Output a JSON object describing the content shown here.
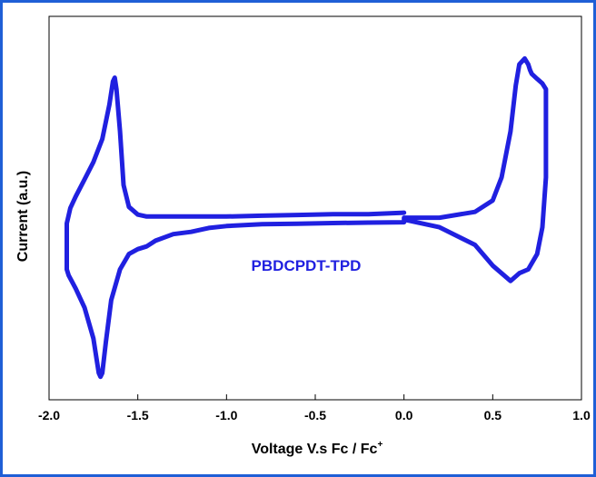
{
  "colors": {
    "frame": "#1f5fd6",
    "series": "#2020e0",
    "axis": "#000000",
    "annotation": "#2020e0"
  },
  "chart_data": {
    "type": "line",
    "title": "",
    "xlabel": "Voltage V.s Fc / Fc",
    "xlabel_superscript": "+",
    "ylabel": "Current (a.u.)",
    "annotation": "PBDCPDT-TPD",
    "xlim": [
      -2.0,
      1.0
    ],
    "ylim": [
      0,
      1
    ],
    "y_ticks_labeled": false,
    "grid": false,
    "legend": "none",
    "x_ticks": [
      -2.0,
      -1.5,
      -1.0,
      -0.5,
      0.0,
      0.5,
      1.0
    ],
    "x_tick_labels": [
      "-2.0",
      "-1.5",
      "-1.0",
      "-0.5",
      "0.0",
      "0.5",
      "1.0"
    ],
    "series": [
      {
        "name": "",
        "x": [
          0.0,
          -0.2,
          -0.4,
          -0.6,
          -0.8,
          -1.0,
          -1.2,
          -1.3,
          -1.4,
          -1.45,
          -1.5,
          -1.55,
          -1.58,
          -1.6,
          -1.62,
          -1.63,
          -1.64,
          -1.66,
          -1.7,
          -1.75,
          -1.8,
          -1.85,
          -1.88,
          -1.9,
          -1.9,
          -1.89,
          -1.85,
          -1.8,
          -1.75,
          -1.73,
          -1.72,
          -1.71,
          -1.7,
          -1.68,
          -1.65,
          -1.6,
          -1.55,
          -1.5,
          -1.45,
          -1.4,
          -1.3,
          -1.2,
          -1.1,
          -1.0,
          -0.8,
          -0.6,
          -0.4,
          -0.2,
          0.0,
          0.0,
          0.2,
          0.4,
          0.5,
          0.55,
          0.6,
          0.63,
          0.65,
          0.68,
          0.7,
          0.71,
          0.72,
          0.75,
          0.78,
          0.8,
          0.8,
          0.78,
          0.75,
          0.7,
          0.65,
          0.6,
          0.5,
          0.4,
          0.2,
          0.0
        ],
        "y": [
          0.488,
          0.484,
          0.484,
          0.482,
          0.48,
          0.478,
          0.478,
          0.478,
          0.478,
          0.478,
          0.483,
          0.503,
          0.56,
          0.7,
          0.81,
          0.84,
          0.83,
          0.77,
          0.68,
          0.62,
          0.575,
          0.53,
          0.5,
          0.46,
          0.34,
          0.325,
          0.29,
          0.24,
          0.16,
          0.1,
          0.07,
          0.06,
          0.07,
          0.15,
          0.26,
          0.34,
          0.38,
          0.393,
          0.4,
          0.415,
          0.432,
          0.438,
          0.448,
          0.453,
          0.458,
          0.459,
          0.461,
          0.462,
          0.463,
          0.475,
          0.475,
          0.49,
          0.52,
          0.58,
          0.7,
          0.82,
          0.875,
          0.89,
          0.875,
          0.86,
          0.85,
          0.837,
          0.825,
          0.81,
          0.58,
          0.45,
          0.38,
          0.34,
          0.33,
          0.31,
          0.35,
          0.404,
          0.45,
          0.47
        ]
      }
    ]
  }
}
